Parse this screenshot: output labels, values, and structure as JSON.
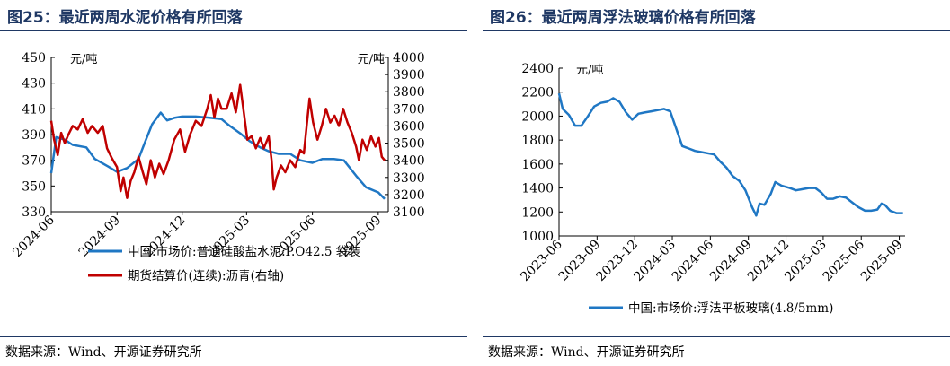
{
  "left": {
    "title": "图25：最近两周水泥价格有所回落",
    "source": "数据来源：Wind、开源证券研究所",
    "chart_data": {
      "type": "line",
      "x_ticks": [
        "2024-06",
        "2024-09",
        "2024-12",
        "2025-03",
        "2025-06",
        "2025-09"
      ],
      "y_left": {
        "unit": "元/吨",
        "range": [
          330,
          450
        ],
        "ticks": [
          330,
          350,
          370,
          390,
          410,
          430,
          450
        ]
      },
      "y_right": {
        "unit": "元/吨",
        "range": [
          3100,
          4000
        ],
        "ticks": [
          3100,
          3200,
          3300,
          3400,
          3500,
          3600,
          3700,
          3800,
          3900,
          4000
        ]
      },
      "grid": false,
      "legend_position": "bottom",
      "series": [
        {
          "name": "中国:市场价:普通硅酸盐水泥:P.O42.5 袋装",
          "axis": "left",
          "color": "#1f77c4",
          "points": [
            [
              "2024-06-01",
              360
            ],
            [
              "2024-06-08",
              388
            ],
            [
              "2024-06-20",
              386
            ],
            [
              "2024-07-01",
              382
            ],
            [
              "2024-07-20",
              380
            ],
            [
              "2024-08-01",
              371
            ],
            [
              "2024-08-20",
              365
            ],
            [
              "2024-09-01",
              361
            ],
            [
              "2024-09-15",
              364
            ],
            [
              "2024-10-01",
              371
            ],
            [
              "2024-10-10",
              384
            ],
            [
              "2024-10-20",
              398
            ],
            [
              "2024-11-01",
              407
            ],
            [
              "2024-11-10",
              401
            ],
            [
              "2024-11-20",
              403
            ],
            [
              "2024-12-01",
              404
            ],
            [
              "2024-12-20",
              404
            ],
            [
              "2025-01-10",
              403
            ],
            [
              "2025-01-25",
              402
            ],
            [
              "2025-02-05",
              397
            ],
            [
              "2025-02-20",
              391
            ],
            [
              "2025-03-05",
              385
            ],
            [
              "2025-03-20",
              380
            ],
            [
              "2025-04-01",
              377
            ],
            [
              "2025-04-15",
              375
            ],
            [
              "2025-05-01",
              375
            ],
            [
              "2025-05-15",
              370
            ],
            [
              "2025-06-01",
              368
            ],
            [
              "2025-06-15",
              371
            ],
            [
              "2025-07-01",
              371
            ],
            [
              "2025-07-15",
              370
            ],
            [
              "2025-08-01",
              358
            ],
            [
              "2025-08-15",
              349
            ],
            [
              "2025-09-01",
              345
            ],
            [
              "2025-09-10",
              340
            ]
          ]
        },
        {
          "name": "期货结算价(连续):沥青(右轴)",
          "axis": "right",
          "color": "#c00000",
          "points": [
            [
              "2024-06-01",
              3630
            ],
            [
              "2024-06-05",
              3520
            ],
            [
              "2024-06-10",
              3430
            ],
            [
              "2024-06-15",
              3560
            ],
            [
              "2024-06-20",
              3500
            ],
            [
              "2024-06-25",
              3550
            ],
            [
              "2024-07-01",
              3600
            ],
            [
              "2024-07-08",
              3580
            ],
            [
              "2024-07-15",
              3640
            ],
            [
              "2024-07-22",
              3560
            ],
            [
              "2024-07-28",
              3600
            ],
            [
              "2024-08-05",
              3560
            ],
            [
              "2024-08-12",
              3600
            ],
            [
              "2024-08-18",
              3470
            ],
            [
              "2024-08-25",
              3410
            ],
            [
              "2024-09-01",
              3360
            ],
            [
              "2024-09-06",
              3220
            ],
            [
              "2024-09-10",
              3300
            ],
            [
              "2024-09-15",
              3180
            ],
            [
              "2024-09-20",
              3280
            ],
            [
              "2024-09-25",
              3330
            ],
            [
              "2024-10-01",
              3420
            ],
            [
              "2024-10-07",
              3330
            ],
            [
              "2024-10-12",
              3260
            ],
            [
              "2024-10-18",
              3400
            ],
            [
              "2024-10-24",
              3300
            ],
            [
              "2024-10-30",
              3380
            ],
            [
              "2024-11-05",
              3320
            ],
            [
              "2024-11-12",
              3400
            ],
            [
              "2024-11-20",
              3520
            ],
            [
              "2024-11-28",
              3580
            ],
            [
              "2024-12-05",
              3450
            ],
            [
              "2024-12-12",
              3550
            ],
            [
              "2024-12-20",
              3630
            ],
            [
              "2024-12-28",
              3600
            ],
            [
              "2025-01-05",
              3700
            ],
            [
              "2025-01-10",
              3780
            ],
            [
              "2025-01-15",
              3650
            ],
            [
              "2025-01-20",
              3760
            ],
            [
              "2025-01-25",
              3700
            ],
            [
              "2025-02-01",
              3700
            ],
            [
              "2025-02-08",
              3790
            ],
            [
              "2025-02-14",
              3680
            ],
            [
              "2025-02-20",
              3840
            ],
            [
              "2025-02-26",
              3650
            ],
            [
              "2025-03-02",
              3520
            ],
            [
              "2025-03-08",
              3540
            ],
            [
              "2025-03-14",
              3470
            ],
            [
              "2025-03-20",
              3530
            ],
            [
              "2025-03-25",
              3470
            ],
            [
              "2025-04-01",
              3540
            ],
            [
              "2025-04-05",
              3400
            ],
            [
              "2025-04-08",
              3230
            ],
            [
              "2025-04-12",
              3300
            ],
            [
              "2025-04-18",
              3370
            ],
            [
              "2025-04-24",
              3330
            ],
            [
              "2025-05-01",
              3400
            ],
            [
              "2025-05-08",
              3360
            ],
            [
              "2025-05-15",
              3460
            ],
            [
              "2025-05-20",
              3440
            ],
            [
              "2025-05-24",
              3600
            ],
            [
              "2025-05-28",
              3760
            ],
            [
              "2025-06-02",
              3620
            ],
            [
              "2025-06-08",
              3520
            ],
            [
              "2025-06-14",
              3600
            ],
            [
              "2025-06-20",
              3700
            ],
            [
              "2025-06-26",
              3620
            ],
            [
              "2025-07-02",
              3660
            ],
            [
              "2025-07-08",
              3600
            ],
            [
              "2025-07-14",
              3700
            ],
            [
              "2025-07-20",
              3620
            ],
            [
              "2025-07-26",
              3560
            ],
            [
              "2025-08-01",
              3480
            ],
            [
              "2025-08-05",
              3400
            ],
            [
              "2025-08-10",
              3520
            ],
            [
              "2025-08-16",
              3460
            ],
            [
              "2025-08-22",
              3540
            ],
            [
              "2025-08-28",
              3480
            ],
            [
              "2025-09-02",
              3530
            ],
            [
              "2025-09-06",
              3420
            ],
            [
              "2025-09-10",
              3400
            ]
          ]
        }
      ]
    }
  },
  "right": {
    "title": "图26：最近两周浮法玻璃价格有所回落",
    "source": "数据来源：Wind、开源证券研究所",
    "chart_data": {
      "type": "line",
      "x_ticks": [
        "2023-06",
        "2023-09",
        "2023-12",
        "2024-03",
        "2024-06",
        "2024-09",
        "2024-12",
        "2025-03",
        "2025-06",
        "2025-09"
      ],
      "y_left": {
        "unit": "元/吨",
        "range": [
          1000,
          2400
        ],
        "ticks": [
          1000,
          1200,
          1400,
          1600,
          1800,
          2000,
          2200,
          2400
        ]
      },
      "grid": false,
      "legend_position": "bottom",
      "series": [
        {
          "name": "中国:市场价:浮法平板玻璃(4.8/5mm)",
          "axis": "left",
          "color": "#1f77c4",
          "points": [
            [
              "2023-06-01",
              2190
            ],
            [
              "2023-06-10",
              2060
            ],
            [
              "2023-06-25",
              2010
            ],
            [
              "2023-07-10",
              1920
            ],
            [
              "2023-07-25",
              1920
            ],
            [
              "2023-08-10",
              2000
            ],
            [
              "2023-08-25",
              2080
            ],
            [
              "2023-09-10",
              2110
            ],
            [
              "2023-09-25",
              2120
            ],
            [
              "2023-10-10",
              2150
            ],
            [
              "2023-10-25",
              2120
            ],
            [
              "2023-11-10",
              2030
            ],
            [
              "2023-11-25",
              1970
            ],
            [
              "2023-12-10",
              2020
            ],
            [
              "2023-12-25",
              2030
            ],
            [
              "2024-01-10",
              2040
            ],
            [
              "2024-01-25",
              2050
            ],
            [
              "2024-02-10",
              2060
            ],
            [
              "2024-02-25",
              2040
            ],
            [
              "2024-03-10",
              1900
            ],
            [
              "2024-03-25",
              1750
            ],
            [
              "2024-04-10",
              1730
            ],
            [
              "2024-04-25",
              1710
            ],
            [
              "2024-05-10",
              1700
            ],
            [
              "2024-05-25",
              1690
            ],
            [
              "2024-06-10",
              1680
            ],
            [
              "2024-06-25",
              1620
            ],
            [
              "2024-07-10",
              1570
            ],
            [
              "2024-07-25",
              1500
            ],
            [
              "2024-08-10",
              1460
            ],
            [
              "2024-08-25",
              1380
            ],
            [
              "2024-09-10",
              1240
            ],
            [
              "2024-09-20",
              1170
            ],
            [
              "2024-09-28",
              1270
            ],
            [
              "2024-10-10",
              1260
            ],
            [
              "2024-10-25",
              1350
            ],
            [
              "2024-11-05",
              1450
            ],
            [
              "2024-11-20",
              1420
            ],
            [
              "2024-12-10",
              1400
            ],
            [
              "2024-12-25",
              1380
            ],
            [
              "2025-01-10",
              1390
            ],
            [
              "2025-01-25",
              1400
            ],
            [
              "2025-02-10",
              1400
            ],
            [
              "2025-02-25",
              1360
            ],
            [
              "2025-03-10",
              1310
            ],
            [
              "2025-03-25",
              1310
            ],
            [
              "2025-04-10",
              1330
            ],
            [
              "2025-04-25",
              1320
            ],
            [
              "2025-05-10",
              1280
            ],
            [
              "2025-05-25",
              1240
            ],
            [
              "2025-06-10",
              1210
            ],
            [
              "2025-06-25",
              1210
            ],
            [
              "2025-07-10",
              1220
            ],
            [
              "2025-07-20",
              1270
            ],
            [
              "2025-07-28",
              1260
            ],
            [
              "2025-08-10",
              1210
            ],
            [
              "2025-08-25",
              1190
            ],
            [
              "2025-09-10",
              1190
            ]
          ]
        }
      ]
    }
  }
}
